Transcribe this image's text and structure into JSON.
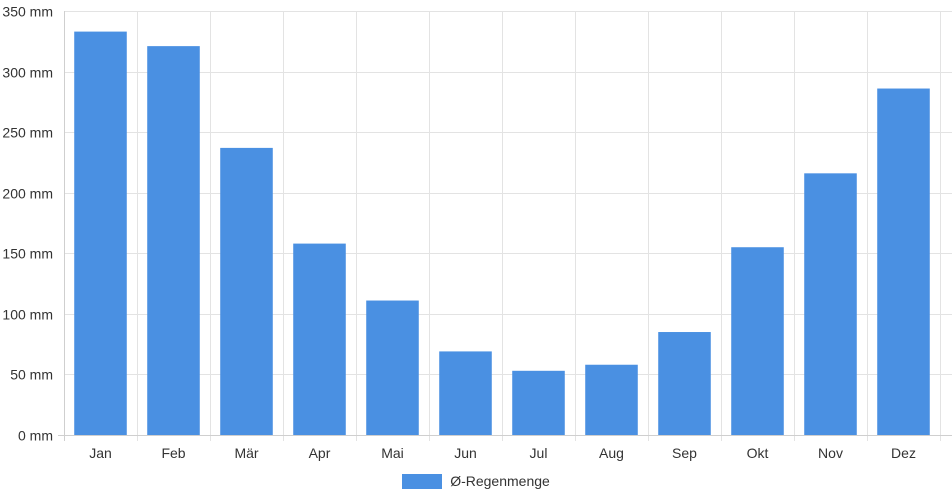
{
  "chart_data": {
    "type": "bar",
    "categories": [
      "Jan",
      "Feb",
      "Mär",
      "Apr",
      "Mai",
      "Jun",
      "Jul",
      "Aug",
      "Sep",
      "Okt",
      "Nov",
      "Dez"
    ],
    "series": [
      {
        "name": "Ø-Regenmenge",
        "color": "#4a90e2",
        "values": [
          333,
          321,
          237,
          158,
          111,
          69,
          53,
          58,
          85,
          155,
          216,
          286
        ]
      }
    ],
    "ylim": [
      0,
      350
    ],
    "yticks": [
      0,
      50,
      100,
      150,
      200,
      250,
      300,
      350
    ],
    "ytick_labels": [
      "0 mm",
      "50 mm",
      "100 mm",
      "150 mm",
      "200 mm",
      "250 mm",
      "300 mm",
      "350 mm"
    ],
    "grid": true,
    "legend_position": "bottom-center"
  }
}
